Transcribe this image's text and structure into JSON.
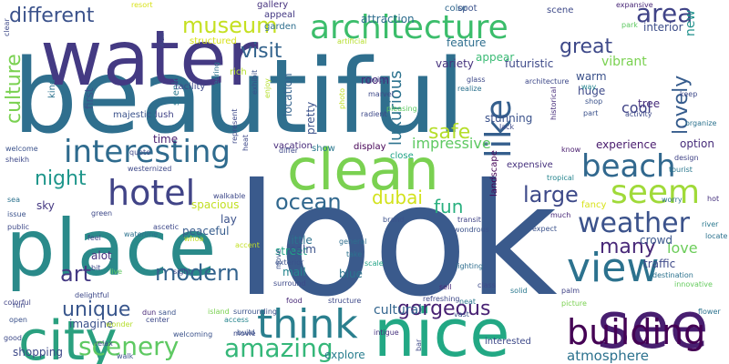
{
  "word_cloud": {
    "words": [
      {
        "text": "look",
        "color": "#3a5a8c"
      },
      {
        "text": "beautiful",
        "color": "#2f6f8e"
      },
      {
        "text": "water",
        "color": "#443a83"
      },
      {
        "text": "place",
        "color": "#2a8a8a"
      },
      {
        "text": "nice",
        "color": "#22a884"
      },
      {
        "text": "clean",
        "color": "#7ad151"
      },
      {
        "text": "see",
        "color": "#481f70"
      },
      {
        "text": "city",
        "color": "#2aa07f"
      },
      {
        "text": "architecture",
        "color": "#3bbd6b"
      },
      {
        "text": "think",
        "color": "#2a7f8e"
      },
      {
        "text": "building",
        "color": "#440154"
      },
      {
        "text": "view",
        "color": "#2c728e"
      },
      {
        "text": "interesting",
        "color": "#2f6b8e"
      },
      {
        "text": "hotel",
        "color": "#414487"
      },
      {
        "text": "beach",
        "color": "#31688e"
      },
      {
        "text": "like",
        "color": "#355f8d"
      },
      {
        "text": "seem",
        "color": "#a0da39"
      },
      {
        "text": "amazing",
        "color": "#35b779"
      },
      {
        "text": "weather",
        "color": "#3b528b"
      },
      {
        "text": "scenery",
        "color": "#5ec962"
      },
      {
        "text": "museum",
        "color": "#c5e021"
      },
      {
        "text": "area",
        "color": "#404387"
      },
      {
        "text": "different",
        "color": "#3b528b"
      },
      {
        "text": "ocean",
        "color": "#31688e"
      },
      {
        "text": "modern",
        "color": "#33638d"
      },
      {
        "text": "visit",
        "color": "#33638d"
      },
      {
        "text": "large",
        "color": "#3e4a89"
      },
      {
        "text": "fun",
        "color": "#2ab07f"
      },
      {
        "text": "art",
        "color": "#443983"
      },
      {
        "text": "night",
        "color": "#1f968b"
      },
      {
        "text": "many",
        "color": "#482878"
      },
      {
        "text": "gorgeous",
        "color": "#482173"
      },
      {
        "text": "great",
        "color": "#3e4989"
      },
      {
        "text": "culture",
        "color": "#7ad151"
      },
      {
        "text": "lovely",
        "color": "#365c8d"
      },
      {
        "text": "safe",
        "color": "#b5de2b"
      },
      {
        "text": "luxurious",
        "color": "#2c728e"
      },
      {
        "text": "dubai",
        "color": "#d2e21b"
      },
      {
        "text": "unique",
        "color": "#39568c"
      },
      {
        "text": "impressive",
        "color": "#5ec962"
      },
      {
        "text": "cool",
        "color": "#414487"
      },
      {
        "text": "cultural",
        "color": "#32658e"
      },
      {
        "text": "new",
        "color": "#21918c"
      },
      {
        "text": "atmosphere",
        "color": "#2c728e"
      },
      {
        "text": "explore",
        "color": "#287d8e"
      },
      {
        "text": "love",
        "color": "#6ccd5a"
      },
      {
        "text": "shopping",
        "color": "#3e4a89"
      },
      {
        "text": "imagine",
        "color": "#3b528b"
      },
      {
        "text": "blue",
        "color": "#2b748e"
      },
      {
        "text": "street",
        "color": "#20a386"
      },
      {
        "text": "mall",
        "color": "#25858e"
      },
      {
        "text": "crowd",
        "color": "#39568c"
      },
      {
        "text": "futuristic",
        "color": "#3e4a89"
      },
      {
        "text": "stunning",
        "color": "#3b528b"
      },
      {
        "text": "variety",
        "color": "#46327e"
      },
      {
        "text": "room",
        "color": "#482878"
      },
      {
        "text": "feature",
        "color": "#2e6e8e"
      },
      {
        "text": "experience",
        "color": "#481b6d"
      },
      {
        "text": "option",
        "color": "#472c7a"
      },
      {
        "text": "vibrant",
        "color": "#7ad151"
      },
      {
        "text": "interior",
        "color": "#3d4e8a"
      },
      {
        "text": "warm",
        "color": "#3b528b"
      },
      {
        "text": "huge",
        "color": "#3e4a89"
      },
      {
        "text": "traffic",
        "color": "#3e4989"
      },
      {
        "text": "tree",
        "color": "#472d7b"
      },
      {
        "text": "calm",
        "color": "#3b528b"
      },
      {
        "text": "peaceful",
        "color": "#365c8d"
      },
      {
        "text": "little",
        "color": "#2c728e"
      },
      {
        "text": "alot",
        "color": "#46327e"
      },
      {
        "text": "sky",
        "color": "#453882"
      },
      {
        "text": "time",
        "color": "#481f70"
      },
      {
        "text": "lay",
        "color": "#3b528b"
      },
      {
        "text": "fancy",
        "color": "#d8e219"
      },
      {
        "text": "attraction",
        "color": "#2e6d8e"
      },
      {
        "text": "color",
        "color": "#31688e"
      },
      {
        "text": "spacious",
        "color": "#c2df23"
      },
      {
        "text": "appear",
        "color": "#3bbb75"
      },
      {
        "text": "pretty",
        "color": "#3b528b"
      },
      {
        "text": "location",
        "color": "#33638d"
      },
      {
        "text": "show",
        "color": "#2a788e"
      },
      {
        "text": "vacation",
        "color": "#472a7a"
      },
      {
        "text": "display",
        "color": "#440154"
      },
      {
        "text": "close",
        "color": "#20a386"
      },
      {
        "text": "landscape",
        "color": "#450457"
      },
      {
        "text": "expensive",
        "color": "#46327e"
      },
      {
        "text": "first",
        "color": "#3b528b"
      },
      {
        "text": "kind",
        "color": "#2c728e"
      },
      {
        "text": "scenic",
        "color": "#2a788e"
      },
      {
        "text": "majestic",
        "color": "#3b528b"
      },
      {
        "text": "lush",
        "color": "#414487"
      },
      {
        "text": "facility",
        "color": "#3e4989"
      },
      {
        "text": "rich",
        "color": "#b5de2b"
      },
      {
        "text": "structured",
        "color": "#d8e219"
      },
      {
        "text": "resort",
        "color": "#d8e219"
      },
      {
        "text": "gallery",
        "color": "#46327e"
      },
      {
        "text": "appeal",
        "color": "#443983"
      },
      {
        "text": "garden",
        "color": "#2e6e8e"
      },
      {
        "text": "artificial",
        "color": "#b5de2b"
      },
      {
        "text": "spot",
        "color": "#3b528b"
      },
      {
        "text": "scene",
        "color": "#3e4a89"
      },
      {
        "text": "expansive",
        "color": "#482777"
      },
      {
        "text": "park",
        "color": "#5ec962"
      },
      {
        "text": "way",
        "color": "#25858e"
      },
      {
        "text": "shop",
        "color": "#3b528b"
      },
      {
        "text": "part",
        "color": "#3b528b"
      },
      {
        "text": "activity",
        "color": "#3e4a89"
      },
      {
        "text": "keep",
        "color": "#3e4989"
      },
      {
        "text": "organize",
        "color": "#2c728e"
      },
      {
        "text": "historical",
        "color": "#472d7b"
      },
      {
        "text": "know",
        "color": "#481b6d"
      },
      {
        "text": "design",
        "color": "#414487"
      },
      {
        "text": "tourist",
        "color": "#2a788e"
      },
      {
        "text": "hot",
        "color": "#46327e"
      },
      {
        "text": "river",
        "color": "#2a788e"
      },
      {
        "text": "locate",
        "color": "#2c728e"
      },
      {
        "text": "destination",
        "color": "#2c728e"
      },
      {
        "text": "innovative",
        "color": "#65cb5e"
      },
      {
        "text": "flower",
        "color": "#2c728e"
      },
      {
        "text": "worry",
        "color": "#2c728e"
      },
      {
        "text": "tropical",
        "color": "#25858e"
      },
      {
        "text": "much",
        "color": "#482878"
      },
      {
        "text": "picture",
        "color": "#7ad151"
      },
      {
        "text": "interested",
        "color": "#3e4a89"
      },
      {
        "text": "palm",
        "color": "#414487"
      },
      {
        "text": "expect",
        "color": "#3b528b"
      },
      {
        "text": "transit",
        "color": "#414487"
      },
      {
        "text": "wondrous",
        "color": "#3b528b"
      },
      {
        "text": "lighting",
        "color": "#2e6e8e"
      },
      {
        "text": "neat",
        "color": "#2a788e"
      },
      {
        "text": "class",
        "color": "#3e4a89"
      },
      {
        "text": "solid",
        "color": "#2a788e"
      },
      {
        "text": "vast",
        "color": "#3b528b"
      },
      {
        "text": "bar",
        "color": "#3e4989"
      },
      {
        "text": "refreshing",
        "color": "#3e4989"
      },
      {
        "text": "sell",
        "color": "#482878"
      },
      {
        "text": "structure",
        "color": "#3e4989"
      },
      {
        "text": "intigue",
        "color": "#46327e"
      },
      {
        "text": "general",
        "color": "#2e6e8e"
      },
      {
        "text": "brand",
        "color": "#3b528b"
      },
      {
        "text": "take",
        "color": "#2c728e"
      },
      {
        "text": "scale",
        "color": "#20a386"
      },
      {
        "text": "food",
        "color": "#482878"
      },
      {
        "text": "surround",
        "color": "#3e4989"
      },
      {
        "text": "surrounding",
        "color": "#3b528b"
      },
      {
        "text": "exterior",
        "color": "#3b528b"
      },
      {
        "text": "movie",
        "color": "#3e4a89"
      },
      {
        "text": "move",
        "color": "#3b528b"
      },
      {
        "text": "accent",
        "color": "#c2df23"
      },
      {
        "text": "access",
        "color": "#25858e"
      },
      {
        "text": "build",
        "color": "#3b528b"
      },
      {
        "text": "island",
        "color": "#7ad151"
      },
      {
        "text": "center",
        "color": "#3e4a89"
      },
      {
        "text": "wonder",
        "color": "#b5de2b"
      },
      {
        "text": "walk",
        "color": "#3b528b"
      },
      {
        "text": "relax",
        "color": "#3e4989"
      },
      {
        "text": "open",
        "color": "#3b528b"
      },
      {
        "text": "run",
        "color": "#3e4989"
      },
      {
        "text": "good",
        "color": "#3e4a89"
      },
      {
        "text": "colorful",
        "color": "#414487"
      },
      {
        "text": "delightful",
        "color": "#3e4989"
      },
      {
        "text": "bit",
        "color": "#3e4989"
      },
      {
        "text": "live",
        "color": "#5ec962"
      },
      {
        "text": "sight",
        "color": "#3e4989"
      },
      {
        "text": "whoa",
        "color": "#c2df23"
      },
      {
        "text": "sand",
        "color": "#3b528b"
      },
      {
        "text": "dun",
        "color": "#482878"
      },
      {
        "text": "welcoming",
        "color": "#3b528b"
      },
      {
        "text": "waterline",
        "color": "#2c728e"
      },
      {
        "text": "green",
        "color": "#3e4989"
      },
      {
        "text": "feel",
        "color": "#3e4a89"
      },
      {
        "text": "walkable",
        "color": "#3e4989"
      },
      {
        "text": "ascetic",
        "color": "#3e4989"
      },
      {
        "text": "sea",
        "color": "#2c728e"
      },
      {
        "text": "issue",
        "color": "#3b528b"
      },
      {
        "text": "public",
        "color": "#3e4989"
      },
      {
        "text": "sheikh",
        "color": "#3e4989"
      },
      {
        "text": "welcome",
        "color": "#3b528b"
      },
      {
        "text": "westernized",
        "color": "#3e4989"
      },
      {
        "text": "quote",
        "color": "#3e4989"
      },
      {
        "text": "differ",
        "color": "#3e4989"
      },
      {
        "text": "heat",
        "color": "#3e4989"
      },
      {
        "text": "represent",
        "color": "#3e4989"
      },
      {
        "text": "engineering",
        "color": "#2c728e"
      },
      {
        "text": "exhibit",
        "color": "#3b528b"
      },
      {
        "text": "enjoy",
        "color": "#b5de2b"
      },
      {
        "text": "photo",
        "color": "#c2df23"
      },
      {
        "text": "invite",
        "color": "#3e4989"
      },
      {
        "text": "marvel",
        "color": "#3e4989"
      },
      {
        "text": "radient",
        "color": "#3e4989"
      },
      {
        "text": "pleasing",
        "color": "#5ec962"
      },
      {
        "text": "glass",
        "color": "#3e4989"
      },
      {
        "text": "realize",
        "color": "#2c728e"
      },
      {
        "text": "lack",
        "color": "#3e4989"
      },
      {
        "text": "clear",
        "color": "#3e4989"
      },
      {
        "text": "wall",
        "color": "#3e4989"
      },
      {
        "text": "architecture",
        "color": "#3e4989"
      }
    ]
  }
}
